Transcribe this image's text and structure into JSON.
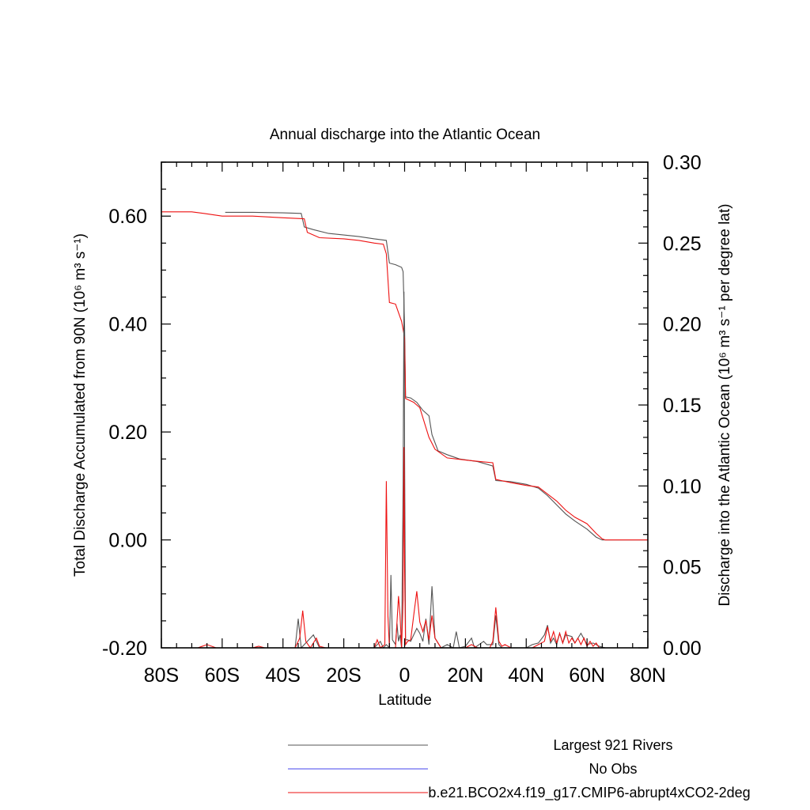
{
  "chart_data": {
    "type": "line",
    "title": "Annual discharge into the Atlantic Ocean",
    "xlabel": "Latitude",
    "ylabel_left": "Total Discharge Accumulated from 90N (10⁶ m³ s⁻¹)",
    "ylabel_right": "Discharge into the Atlantic Ocean (10⁶ m³ s⁻¹ per degree lat)",
    "xlim": [
      -80,
      80
    ],
    "ylim_left": [
      -0.2,
      0.7
    ],
    "ylim_right": [
      0,
      0.3
    ],
    "x_ticks": [
      -80,
      -60,
      -40,
      -20,
      0,
      20,
      40,
      60,
      80
    ],
    "x_tick_labels": [
      "80S",
      "60S",
      "40S",
      "20S",
      "0",
      "20N",
      "40N",
      "60N",
      "80N"
    ],
    "y_left_ticks": [
      -0.2,
      0.0,
      0.2,
      0.4,
      0.6
    ],
    "y_left_tick_labels": [
      "-0.20",
      "0.00",
      "0.20",
      "0.40",
      "0.60"
    ],
    "y_right_ticks": [
      0,
      0.05,
      0.1,
      0.15,
      0.2,
      0.25,
      0.3
    ],
    "y_right_tick_labels": [
      "0.00",
      "0.05",
      "0.10",
      "0.15",
      "0.20",
      "0.25",
      "0.30"
    ],
    "grid": false,
    "legend_position": "bottom-right",
    "series": [
      {
        "name": "Largest 921 Rivers",
        "color": "#555555",
        "axis": "left",
        "points": [
          [
            -59,
            0.607
          ],
          [
            -50,
            0.607
          ],
          [
            -40,
            0.606
          ],
          [
            -34,
            0.605
          ],
          [
            -33,
            0.58
          ],
          [
            -30,
            0.575
          ],
          [
            -25,
            0.568
          ],
          [
            -20,
            0.565
          ],
          [
            -15,
            0.562
          ],
          [
            -10,
            0.558
          ],
          [
            -6,
            0.555
          ],
          [
            -5,
            0.513
          ],
          [
            -3,
            0.51
          ],
          [
            -1,
            0.505
          ],
          [
            -0.5,
            0.497
          ],
          [
            0,
            0.395
          ],
          [
            0.3,
            0.265
          ],
          [
            2,
            0.263
          ],
          [
            4,
            0.255
          ],
          [
            6,
            0.24
          ],
          [
            8,
            0.23
          ],
          [
            9,
            0.195
          ],
          [
            11,
            0.165
          ],
          [
            14,
            0.158
          ],
          [
            18,
            0.15
          ],
          [
            24,
            0.145
          ],
          [
            29,
            0.137
          ],
          [
            30,
            0.11
          ],
          [
            35,
            0.108
          ],
          [
            40,
            0.103
          ],
          [
            44,
            0.096
          ],
          [
            47,
            0.082
          ],
          [
            50,
            0.065
          ],
          [
            53,
            0.048
          ],
          [
            56,
            0.035
          ],
          [
            60,
            0.02
          ],
          [
            63,
            0.005
          ],
          [
            65,
            0.0
          ],
          [
            80,
            0.0
          ]
        ]
      },
      {
        "name": "No Obs",
        "color": "#4444ee",
        "axis": "left",
        "points": []
      },
      {
        "name": "b.e21.BCO2x4.f19_g17.CMIP6-abrupt4xCO2-2deg",
        "color": "#ee1111",
        "axis": "left",
        "points": [
          [
            -80,
            0.608
          ],
          [
            -70,
            0.608
          ],
          [
            -66,
            0.605
          ],
          [
            -60,
            0.6
          ],
          [
            -50,
            0.6
          ],
          [
            -40,
            0.597
          ],
          [
            -33,
            0.595
          ],
          [
            -32,
            0.57
          ],
          [
            -28,
            0.56
          ],
          [
            -20,
            0.558
          ],
          [
            -15,
            0.555
          ],
          [
            -10,
            0.55
          ],
          [
            -7,
            0.548
          ],
          [
            -6,
            0.53
          ],
          [
            -5,
            0.44
          ],
          [
            -3,
            0.437
          ],
          [
            -1,
            0.405
          ],
          [
            0,
            0.375
          ],
          [
            0.3,
            0.262
          ],
          [
            3,
            0.255
          ],
          [
            5,
            0.245
          ],
          [
            8,
            0.19
          ],
          [
            10,
            0.168
          ],
          [
            14,
            0.152
          ],
          [
            20,
            0.148
          ],
          [
            25,
            0.145
          ],
          [
            29,
            0.143
          ],
          [
            30,
            0.112
          ],
          [
            35,
            0.106
          ],
          [
            40,
            0.101
          ],
          [
            44,
            0.098
          ],
          [
            47,
            0.085
          ],
          [
            50,
            0.072
          ],
          [
            53,
            0.055
          ],
          [
            56,
            0.042
          ],
          [
            60,
            0.03
          ],
          [
            63,
            0.012
          ],
          [
            65,
            0.002
          ],
          [
            66,
            0.0
          ],
          [
            80,
            0.0
          ]
        ]
      },
      {
        "name": "",
        "color": "#555555",
        "axis": "right",
        "points": [
          [
            -80,
            0
          ],
          [
            -36,
            0
          ],
          [
            -35,
            0.018
          ],
          [
            -34,
            0
          ],
          [
            -30,
            0.008
          ],
          [
            -28,
            0
          ],
          [
            -10,
            0
          ],
          [
            -8,
            0.004
          ],
          [
            -7,
            0
          ],
          [
            -6,
            0.002
          ],
          [
            -5,
            0
          ],
          [
            -4.5,
            0.045
          ],
          [
            -4,
            0.005
          ],
          [
            -3,
            0.002
          ],
          [
            -2.5,
            0.015
          ],
          [
            -2,
            0.004
          ],
          [
            -1.5,
            0.008
          ],
          [
            -1,
            0
          ],
          [
            -0.5,
            0.1
          ],
          [
            -0.2,
            0.22
          ],
          [
            0,
            0.12
          ],
          [
            0.3,
            0.005
          ],
          [
            1,
            0.005
          ],
          [
            2,
            0.004
          ],
          [
            3,
            0.008
          ],
          [
            4,
            0.012
          ],
          [
            5,
            0.009
          ],
          [
            6,
            0.004
          ],
          [
            7,
            0.018
          ],
          [
            8,
            0.002
          ],
          [
            9,
            0.038
          ],
          [
            10,
            0.006
          ],
          [
            11,
            0.003
          ],
          [
            12,
            0
          ],
          [
            14,
            0.002
          ],
          [
            16,
            0
          ],
          [
            17,
            0.01
          ],
          [
            18,
            0
          ],
          [
            20,
            0.001
          ],
          [
            22,
            0.006
          ],
          [
            23,
            0
          ],
          [
            26,
            0.004
          ],
          [
            27,
            0.002
          ],
          [
            29,
            0.002
          ],
          [
            30,
            0.02
          ],
          [
            31,
            0.002
          ],
          [
            32,
            0
          ],
          [
            40,
            0
          ],
          [
            42,
            0.002
          ],
          [
            44,
            0.003
          ],
          [
            46,
            0.008
          ],
          [
            47,
            0.014
          ],
          [
            48,
            0.003
          ],
          [
            49,
            0.006
          ],
          [
            50,
            0.002
          ],
          [
            51,
            0.009
          ],
          [
            52,
            0.003
          ],
          [
            53,
            0.008
          ],
          [
            55,
            0.007
          ],
          [
            56,
            0.003
          ],
          [
            58,
            0.009
          ],
          [
            60,
            0.002
          ],
          [
            62,
            0.003
          ],
          [
            64,
            0.001
          ],
          [
            66,
            0
          ],
          [
            80,
            0
          ]
        ]
      },
      {
        "name": "",
        "color": "#ee1111",
        "axis": "right",
        "points": [
          [
            -80,
            0
          ],
          [
            -68,
            0
          ],
          [
            -65,
            0.002
          ],
          [
            -62,
            0
          ],
          [
            -50,
            0
          ],
          [
            -48,
            0.001
          ],
          [
            -46,
            0
          ],
          [
            -36,
            0
          ],
          [
            -34.5,
            0.006
          ],
          [
            -33.5,
            0.023
          ],
          [
            -32.5,
            0.004
          ],
          [
            -31,
            0
          ],
          [
            -29,
            0.006
          ],
          [
            -28,
            0.001
          ],
          [
            -26,
            0
          ],
          [
            -10,
            0
          ],
          [
            -9,
            0.005
          ],
          [
            -8,
            0
          ],
          [
            -6.5,
            0.002
          ],
          [
            -6,
            0.103
          ],
          [
            -5.5,
            0.02
          ],
          [
            -5,
            0
          ],
          [
            -3,
            0
          ],
          [
            -2,
            0.032
          ],
          [
            -1.5,
            0.02
          ],
          [
            -1,
            0
          ],
          [
            -0.5,
            0.03
          ],
          [
            -0.2,
            0.124
          ],
          [
            0,
            0.05
          ],
          [
            0.3,
            0.002
          ],
          [
            1,
            0.004
          ],
          [
            2,
            0.005
          ],
          [
            3,
            0.02
          ],
          [
            4,
            0.035
          ],
          [
            5,
            0.016
          ],
          [
            6,
            0.01
          ],
          [
            7,
            0.017
          ],
          [
            8,
            0.005
          ],
          [
            9,
            0.02
          ],
          [
            10,
            0.006
          ],
          [
            11,
            0.003
          ],
          [
            12,
            0
          ],
          [
            20,
            0
          ],
          [
            22,
            0.002
          ],
          [
            24,
            0
          ],
          [
            28,
            0
          ],
          [
            29,
            0.004
          ],
          [
            30,
            0.025
          ],
          [
            31,
            0.004
          ],
          [
            32,
            0.001
          ],
          [
            33,
            0.002
          ],
          [
            35,
            0
          ],
          [
            42,
            0
          ],
          [
            44,
            0.002
          ],
          [
            46,
            0.004
          ],
          [
            47,
            0.013
          ],
          [
            48,
            0.004
          ],
          [
            49,
            0.01
          ],
          [
            50,
            0.003
          ],
          [
            51,
            0.009
          ],
          [
            52,
            0.003
          ],
          [
            53,
            0.01
          ],
          [
            54,
            0.003
          ],
          [
            55,
            0.006
          ],
          [
            56,
            0.003
          ],
          [
            57,
            0.006
          ],
          [
            58,
            0.002
          ],
          [
            59,
            0.006
          ],
          [
            60,
            0.001
          ],
          [
            61,
            0.004
          ],
          [
            62,
            0.001
          ],
          [
            63,
            0.003
          ],
          [
            64,
            0
          ],
          [
            80,
            0
          ]
        ]
      }
    ]
  }
}
